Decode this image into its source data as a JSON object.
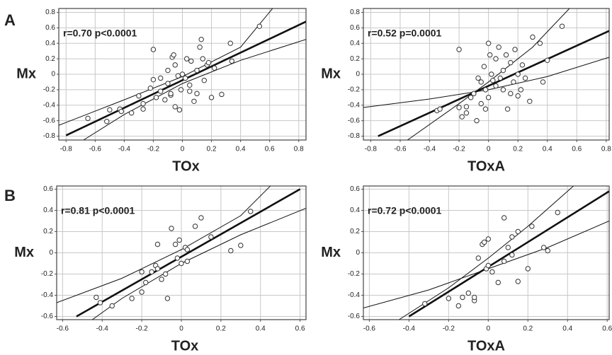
{
  "panel_labels": [
    "A",
    "B"
  ],
  "chart_data": [
    {
      "type": "scatter",
      "annotation": "r=0.70  p<0.0001",
      "x_label": "TOx",
      "y_label": "Mx",
      "xlim": [
        -0.85,
        0.85
      ],
      "ylim": [
        -0.85,
        0.85
      ],
      "xticks": [
        -0.8,
        -0.6,
        -0.4,
        -0.2,
        0,
        0.2,
        0.4,
        0.6,
        0.8
      ],
      "yticks": [
        -0.8,
        -0.6,
        -0.4,
        -0.2,
        0,
        0.2,
        0.4,
        0.6,
        0.8
      ],
      "grid": true,
      "x": [
        -0.65,
        -0.52,
        -0.5,
        -0.43,
        -0.42,
        -0.35,
        -0.3,
        -0.27,
        -0.27,
        -0.22,
        -0.2,
        -0.2,
        -0.18,
        -0.15,
        -0.12,
        -0.1,
        -0.1,
        -0.08,
        -0.07,
        -0.06,
        -0.05,
        -0.05,
        -0.03,
        -0.02,
        -0.01,
        0,
        0.02,
        0.03,
        0.05,
        0.06,
        0.08,
        0.1,
        0.1,
        0.12,
        0.13,
        0.14,
        0.15,
        0.17,
        0.18,
        0.2,
        0.22,
        0.27,
        0.33,
        0.34,
        0.53,
        -0.08,
        -0.15,
        0.05
      ],
      "y": [
        -0.57,
        -0.61,
        -0.46,
        -0.45,
        -0.48,
        -0.5,
        -0.28,
        -0.38,
        -0.45,
        -0.18,
        0.32,
        -0.07,
        -0.3,
        -0.22,
        -0.33,
        -0.12,
        0.05,
        -0.27,
        0.22,
        0.25,
        0.12,
        -0.42,
        -0.02,
        -0.46,
        -0.2,
        0.0,
        -0.05,
        0.2,
        -0.14,
        0.17,
        -0.35,
        -0.25,
        0.05,
        0.35,
        0.45,
        0.2,
        -0.08,
        0.12,
        0.15,
        -0.3,
        0.08,
        -0.26,
        0.4,
        0.17,
        0.62,
        -0.25,
        -0.05,
        -0.22
      ],
      "fit": {
        "x": [
          -0.8,
          0.85
        ],
        "y": [
          -0.79,
          0.68
        ]
      },
      "ci_upper": {
        "x": [
          -0.85,
          -0.4,
          0,
          0.4,
          0.62
        ],
        "y": [
          -0.66,
          -0.33,
          -0.03,
          0.35,
          0.85
        ]
      },
      "ci_lower": {
        "x": [
          -0.68,
          -0.4,
          0,
          0.4,
          0.85
        ],
        "y": [
          -0.85,
          -0.52,
          -0.12,
          0.18,
          0.45
        ]
      }
    },
    {
      "type": "scatter",
      "annotation": "r=0.52  p=0.0001",
      "x_label": "TOxA",
      "y_label": "Mx",
      "xlim": [
        -0.85,
        0.82
      ],
      "ylim": [
        -0.85,
        0.85
      ],
      "xticks": [
        -0.8,
        -0.6,
        -0.4,
        -0.2,
        0,
        0.2,
        0.4,
        0.6,
        0.8
      ],
      "yticks": [
        -0.8,
        -0.6,
        -0.4,
        -0.2,
        0,
        0.2,
        0.4,
        0.6,
        0.8
      ],
      "grid": true,
      "x": [
        -0.35,
        -0.33,
        -0.2,
        -0.2,
        -0.18,
        -0.15,
        -0.15,
        -0.12,
        -0.1,
        -0.08,
        -0.07,
        -0.05,
        -0.05,
        -0.03,
        -0.02,
        0,
        0,
        0.01,
        0.02,
        0.03,
        0.05,
        0.05,
        0.07,
        0.1,
        0.1,
        0.12,
        0.13,
        0.15,
        0.15,
        0.17,
        0.18,
        0.2,
        0.2,
        0.22,
        0.23,
        0.25,
        0.28,
        0.3,
        0.35,
        0.37,
        0.4,
        0.5,
        -0.02,
        0.08
      ],
      "y": [
        -0.47,
        -0.45,
        0.32,
        -0.43,
        -0.55,
        -0.5,
        -0.42,
        -0.3,
        -0.25,
        -0.6,
        -0.05,
        -0.38,
        -0.1,
        0.1,
        -0.2,
        0.4,
        -0.3,
        0.25,
        0.0,
        -0.08,
        0.2,
        -0.15,
        0.35,
        0.05,
        -0.2,
        0.25,
        -0.45,
        0.15,
        -0.25,
        -0.1,
        0.32,
        -0.28,
        0.0,
        -0.2,
        0.12,
        -0.05,
        -0.35,
        0.48,
        0.4,
        -0.1,
        0.18,
        0.62,
        -0.45,
        -0.05
      ],
      "fit": {
        "x": [
          -0.75,
          0.82
        ],
        "y": [
          -0.8,
          0.56
        ]
      },
      "ci_upper": {
        "x": [
          -0.55,
          -0.2,
          0,
          0.3,
          0.55
        ],
        "y": [
          -0.85,
          -0.38,
          -0.1,
          0.35,
          0.85
        ]
      },
      "ci_lower": {
        "x": [
          -0.85,
          -0.4,
          0,
          0.4,
          0.82
        ],
        "y": [
          -0.43,
          -0.32,
          -0.2,
          -0.03,
          0.22
        ]
      }
    },
    {
      "type": "scatter",
      "annotation": "r=0.81  p<0.0001",
      "x_label": "TOx",
      "y_label": "Mx",
      "xlim": [
        -0.63,
        0.63
      ],
      "ylim": [
        -0.63,
        0.63
      ],
      "xticks": [
        -0.6,
        -0.4,
        -0.2,
        0,
        0.2,
        0.4,
        0.6
      ],
      "yticks": [
        -0.6,
        -0.4,
        -0.2,
        0,
        0.2,
        0.4,
        0.6
      ],
      "grid": true,
      "x": [
        -0.43,
        -0.41,
        -0.35,
        -0.25,
        -0.2,
        -0.2,
        -0.18,
        -0.15,
        -0.13,
        -0.12,
        -0.12,
        -0.1,
        -0.08,
        -0.07,
        -0.05,
        -0.03,
        -0.02,
        -0.01,
        0,
        0.02,
        0.03,
        0.03,
        0.07,
        0.1,
        0.15,
        0.25,
        0.3,
        0.35
      ],
      "y": [
        -0.42,
        -0.47,
        -0.5,
        -0.43,
        -0.37,
        -0.18,
        -0.28,
        -0.18,
        -0.12,
        -0.15,
        0.08,
        -0.25,
        -0.2,
        -0.43,
        0.23,
        0.08,
        -0.05,
        0.12,
        -0.1,
        0.05,
        0.03,
        -0.08,
        0.25,
        0.33,
        0.15,
        0.02,
        0.07,
        0.39
      ],
      "fit": {
        "x": [
          -0.53,
          0.6
        ],
        "y": [
          -0.6,
          0.6
        ]
      },
      "ci_upper": {
        "x": [
          -0.63,
          -0.3,
          0,
          0.3,
          0.45
        ],
        "y": [
          -0.47,
          -0.24,
          0.03,
          0.35,
          0.63
        ]
      },
      "ci_lower": {
        "x": [
          -0.45,
          -0.3,
          0,
          0.3,
          0.63
        ],
        "y": [
          -0.63,
          -0.43,
          -0.1,
          0.17,
          0.42
        ]
      }
    },
    {
      "type": "scatter",
      "annotation": "r=0.72  p<0.0001",
      "x_label": "TOxA",
      "y_label": "Mx",
      "xlim": [
        -0.63,
        0.61
      ],
      "ylim": [
        -0.63,
        0.63
      ],
      "xticks": [
        -0.6,
        -0.4,
        -0.2,
        0,
        0.2,
        0.4,
        0.6
      ],
      "yticks": [
        -0.6,
        -0.4,
        -0.2,
        0,
        0.2,
        0.4,
        0.6
      ],
      "grid": true,
      "x": [
        -0.32,
        -0.2,
        -0.15,
        -0.13,
        -0.1,
        -0.07,
        -0.07,
        -0.05,
        -0.03,
        -0.02,
        -0.01,
        0,
        0,
        0.02,
        0.05,
        0.08,
        0.08,
        0.1,
        0.12,
        0.12,
        0.15,
        0.15,
        0.2,
        0.22,
        0.28,
        0.3,
        0.35
      ],
      "y": [
        -0.48,
        -0.43,
        -0.5,
        -0.42,
        -0.38,
        -0.45,
        -0.42,
        -0.05,
        0.08,
        0.1,
        -0.15,
        0.13,
        -0.12,
        -0.18,
        -0.28,
        0.33,
        -0.08,
        0.05,
        -0.02,
        0.15,
        0.2,
        -0.27,
        -0.15,
        0.25,
        0.05,
        0.02,
        0.38
      ],
      "fit": {
        "x": [
          -0.4,
          0.61
        ],
        "y": [
          -0.6,
          0.58
        ]
      },
      "ci_upper": {
        "x": [
          -0.45,
          -0.2,
          0,
          0.2,
          0.43
        ],
        "y": [
          -0.63,
          -0.33,
          -0.05,
          0.25,
          0.63
        ]
      },
      "ci_lower": {
        "x": [
          -0.63,
          -0.3,
          0,
          0.3,
          0.61
        ],
        "y": [
          -0.52,
          -0.35,
          -0.15,
          0.05,
          0.3
        ]
      }
    }
  ]
}
